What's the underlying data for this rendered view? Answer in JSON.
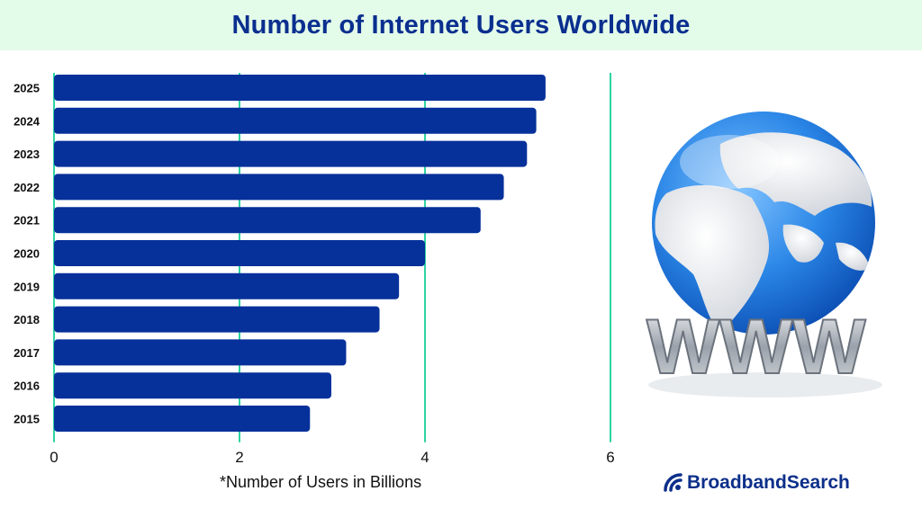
{
  "title": "Number of Internet Users Worldwide",
  "footnote": "*Number of Users in Billions",
  "brand": {
    "name": "BroadbandSearch",
    "color": "#0d2f8a"
  },
  "illustration": {
    "icon": "globe-www-icon",
    "letters": "WWW"
  },
  "colors": {
    "bar": "#06309a",
    "grid": "#2ed3a3",
    "header_bg": "#e3fbe9",
    "title": "#0a2f8f"
  },
  "chart_data": {
    "type": "bar",
    "orientation": "horizontal",
    "categories": [
      "2025",
      "2024",
      "2023",
      "2022",
      "2021",
      "2020",
      "2019",
      "2018",
      "2017",
      "2016",
      "2015"
    ],
    "values": [
      5.3,
      5.2,
      5.1,
      4.85,
      4.6,
      4.0,
      3.72,
      3.51,
      3.15,
      2.99,
      2.76
    ],
    "xlim": [
      0,
      6
    ],
    "xticks": [
      0,
      2,
      4,
      6
    ],
    "grid": true,
    "xlabel": "",
    "ylabel": ""
  }
}
